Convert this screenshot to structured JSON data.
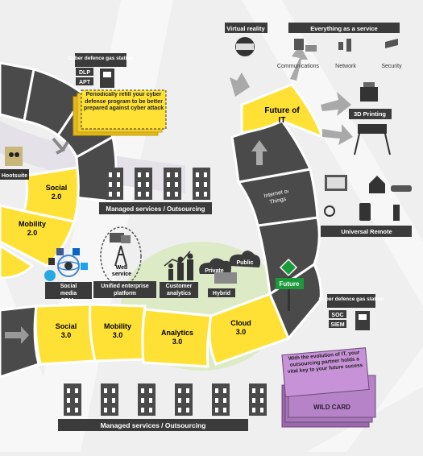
{
  "colors": {
    "yellow": "#ffe135",
    "tile_dark": "#3d3d3d",
    "tile_mid": "#5a5a5a",
    "label_bg": "#3b3b3b",
    "background": "#efefef",
    "path_light": "#e2e2e2",
    "green": "#1a9a3a",
    "purple": "#b783c8",
    "note": "#ffe135"
  },
  "left_station": {
    "title": "Cyber defence gas station",
    "items": [
      "DLP",
      "APT"
    ]
  },
  "left_note": "Periodically refill your cyber defense program to be better prepared against cyber attack",
  "hootsuite": "Hootsuite",
  "tiles": {
    "social20": "Social 2.0",
    "mobility20": "Mobility 2.0",
    "social30": "Social 3.0",
    "mobility30": "Mobility 3.0",
    "analytics30": "Analytics 3.0",
    "cloud30": "Cloud 3.0",
    "future_it": "Future of IT",
    "iot": "Internet of Things"
  },
  "managed_top": "Managed services / Outsourcing",
  "managed_bottom": "Managed services / Outsourcing",
  "social_media_crms": "Social media CRMs",
  "unified_enterprise": "Unified enterprise platform",
  "web_service": "Web service",
  "customer_analytics": "Customer analytics",
  "cloud_private": "Private",
  "cloud_public": "Public",
  "hybrid": "Hybrid",
  "future_sign": "Future",
  "virtual_reality": "Virtual reality",
  "everything_service": {
    "title": "Everything as a service",
    "items": [
      "Communications",
      "Network",
      "Security"
    ]
  },
  "printing_3d": "3D Printing",
  "universal_remote": "Universal Remote",
  "right_station": {
    "title": "Cyber defence gas station",
    "items": [
      "SOC",
      "SIEM"
    ]
  },
  "wild_card": {
    "text": "With the evolution of IT, your outsourcing partner holds a vital key to your future sucess",
    "label": "WILD CARD"
  }
}
